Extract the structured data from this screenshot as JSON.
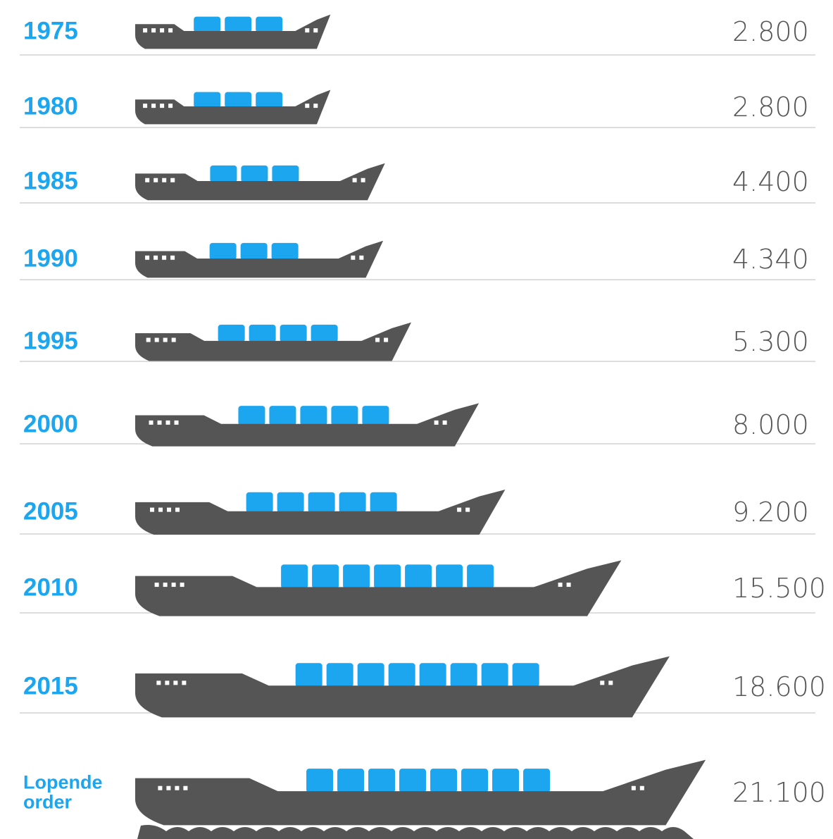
{
  "chart_data": {
    "type": "pictogram",
    "categories": [
      "1975",
      "1980",
      "1985",
      "1990",
      "1995",
      "2000",
      "2005",
      "2010",
      "2015",
      "Lopende order"
    ],
    "values": [
      2800,
      2800,
      4400,
      4340,
      5300,
      8000,
      9200,
      15500,
      18600,
      21100
    ],
    "value_labels": [
      "2.800",
      "2.800",
      "4.400",
      "4.340",
      "5.300",
      "8.000",
      "9.200",
      "15.500",
      "18.600",
      "21.100"
    ],
    "color": "#1ba6ef",
    "hull_color": "#555555"
  }
}
